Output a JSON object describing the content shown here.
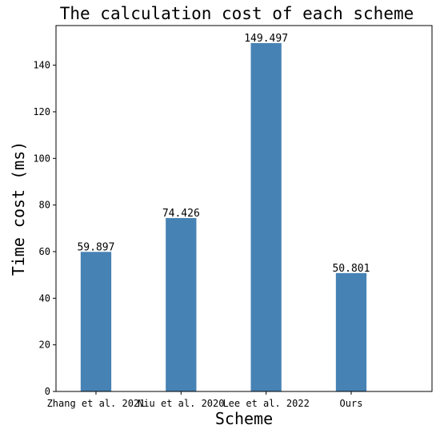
{
  "chart_data": {
    "type": "bar",
    "title": "The calculation cost of each scheme",
    "xlabel": "Scheme",
    "ylabel": "Time cost (ms)",
    "categories": [
      "Zhang et al. 2021",
      "Niu et al. 2020",
      "Lee et al. 2022",
      "Ours"
    ],
    "values": [
      59.897,
      74.426,
      149.497,
      50.801
    ],
    "data_labels": [
      "59.897",
      "74.426",
      "149.497",
      "50.801"
    ],
    "yticks": [
      0,
      20,
      40,
      60,
      80,
      100,
      120,
      140
    ],
    "ylim": [
      0,
      157
    ],
    "grid": false,
    "bar_color": "#4682b4"
  }
}
